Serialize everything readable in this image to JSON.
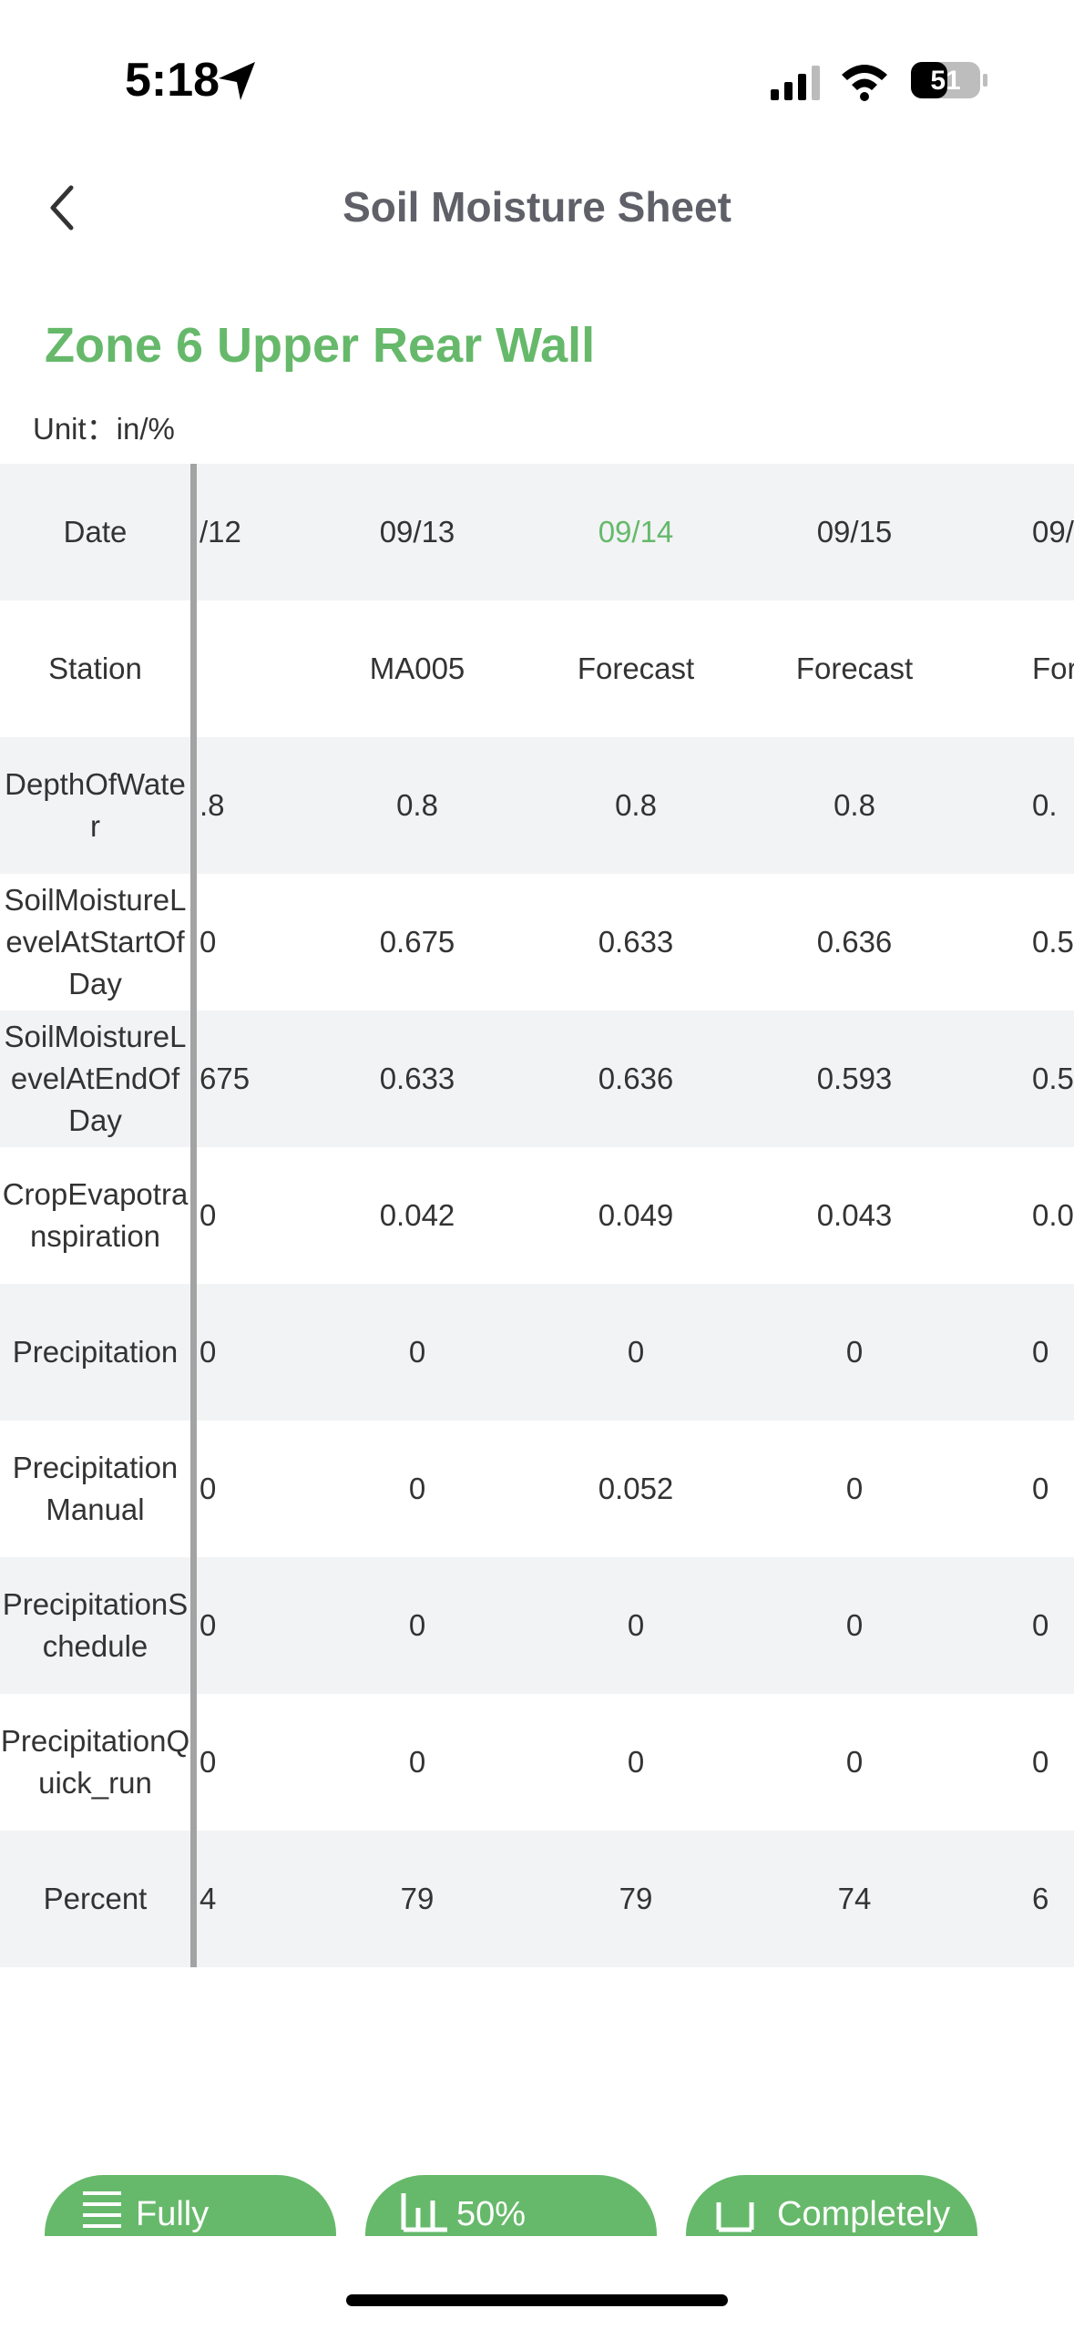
{
  "status_bar": {
    "time": "5:18",
    "battery": "51"
  },
  "header": {
    "title": "Soil Moisture Sheet"
  },
  "zone": "Zone 6 Upper Rear Wall",
  "unit": "Unit：in/%",
  "table": {
    "row_labels": [
      "Date",
      "Station",
      "DepthOfWater",
      "SoilMoistureLevelAtStartOfDay",
      "SoilMoistureLevelAtEndOfDay",
      "CropEvapotranspiration",
      "Precipitation",
      "PrecipitationManual",
      "PrecipitationSchedule",
      "PrecipitationQuick_run",
      "Percent"
    ],
    "columns": [
      {
        "cells": [
          "/12",
          null,
          ".8",
          "0",
          "675",
          "0",
          "0",
          "0",
          "0",
          "0",
          "4"
        ]
      },
      {
        "cells": [
          "09/13",
          "MA005",
          "0.8",
          "0.675",
          "0.633",
          "0.042",
          "0",
          "0",
          "0",
          "0",
          "79"
        ]
      },
      {
        "cells": [
          "09/14",
          "Forecast",
          "0.8",
          "0.633",
          "0.636",
          "0.049",
          "0",
          "0.052",
          "0",
          "0",
          "79"
        ],
        "highlight": true
      },
      {
        "cells": [
          "09/15",
          "Forecast",
          "0.8",
          "0.636",
          "0.593",
          "0.043",
          "0",
          "0",
          "0",
          "0",
          "74"
        ]
      },
      {
        "cells": [
          "09/",
          "Fore",
          "0.",
          "0.5",
          "0.5",
          "0.0",
          "0",
          "0",
          "0",
          "0",
          "6"
        ]
      }
    ]
  },
  "buttons": [
    "Fully",
    "50%",
    "Completely"
  ]
}
